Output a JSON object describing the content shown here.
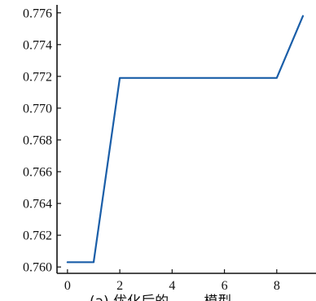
{
  "chart_data": {
    "type": "line",
    "x": [
      0,
      1,
      2,
      3,
      4,
      5,
      6,
      7,
      8,
      9
    ],
    "series": [
      {
        "values": [
          0.7603,
          0.7603,
          0.7719,
          0.7719,
          0.7719,
          0.7719,
          0.7719,
          0.7719,
          0.7719,
          0.7758
        ],
        "color": "#1a5ea8"
      }
    ],
    "xlim": [
      -0.4,
      9.5
    ],
    "ylim": [
      0.7596,
      0.7765
    ],
    "x_ticks": [
      0,
      2,
      4,
      6,
      8
    ],
    "x_tick_labels": [
      "0",
      "2",
      "4",
      "6",
      "8"
    ],
    "y_ticks": [
      0.76,
      0.762,
      0.764,
      0.766,
      0.768,
      0.77,
      0.772,
      0.774,
      0.776
    ],
    "y_tick_labels": [
      "0.760",
      "0.762",
      "0.764",
      "0.766",
      "0.768",
      "0.770",
      "0.772",
      "0.774",
      "0.776"
    ],
    "grid": false,
    "caption": "(a) 优化后的 ...... 模型"
  }
}
